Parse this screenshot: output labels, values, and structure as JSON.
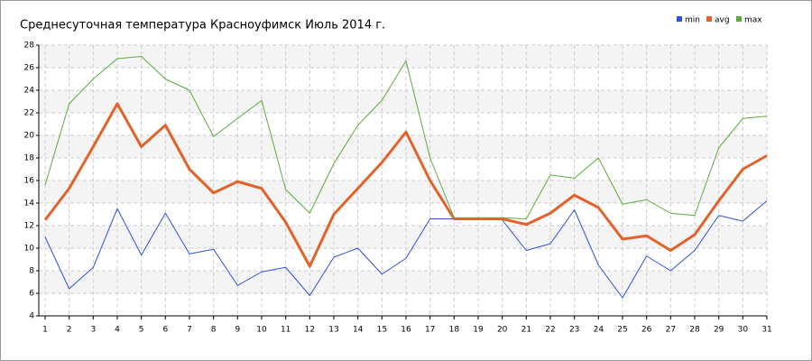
{
  "chart_data": {
    "type": "line",
    "title": "Среднесуточная температура Красноуфимск  Июль 2014 г.",
    "x": [
      1,
      2,
      3,
      4,
      5,
      6,
      7,
      8,
      9,
      10,
      11,
      12,
      13,
      14,
      15,
      16,
      17,
      18,
      19,
      20,
      21,
      22,
      23,
      24,
      25,
      26,
      27,
      28,
      29,
      30,
      31
    ],
    "series": [
      {
        "name": "min",
        "color": "#3050d8",
        "width": 1,
        "values": [
          11,
          6.4,
          8.3,
          13.5,
          9.4,
          13.1,
          9.5,
          9.9,
          6.7,
          7.9,
          8.3,
          5.8,
          9.2,
          10,
          7.7,
          9.1,
          12.6,
          12.6,
          12.6,
          12.5,
          9.8,
          10.4,
          13.4,
          8.5,
          5.6,
          9.3,
          8,
          9.8,
          12.9,
          12.4,
          14.2
        ]
      },
      {
        "name": "avg",
        "color": "#e2622a",
        "width": 3,
        "values": [
          12.5,
          15.3,
          19,
          22.8,
          19,
          20.9,
          17,
          14.9,
          15.9,
          15.3,
          12.3,
          8.4,
          13,
          15.3,
          17.6,
          20.3,
          16,
          12.6,
          12.6,
          12.6,
          12.1,
          13.1,
          14.7,
          13.6,
          10.8,
          11.1,
          9.8,
          11.2,
          14.2,
          17,
          18.2
        ]
      },
      {
        "name": "max",
        "color": "#5aac3c",
        "width": 1,
        "values": [
          15.6,
          22.8,
          25,
          26.8,
          27,
          25,
          24,
          19.9,
          21.5,
          23.1,
          15.2,
          13.1,
          17.5,
          20.9,
          23.1,
          26.6,
          18,
          12.7,
          12.7,
          12.7,
          12.6,
          16.5,
          16.2,
          18,
          13.9,
          14.3,
          13.1,
          12.9,
          18.9,
          21.5,
          21.7
        ]
      }
    ],
    "xlim": [
      1,
      31
    ],
    "xticks": [
      1,
      2,
      3,
      4,
      5,
      6,
      7,
      8,
      9,
      10,
      11,
      12,
      13,
      14,
      15,
      16,
      17,
      18,
      19,
      20,
      21,
      22,
      23,
      24,
      25,
      26,
      27,
      28,
      29,
      30,
      31
    ],
    "ylim": [
      4,
      28
    ],
    "yticks": [
      4,
      6,
      8,
      10,
      12,
      14,
      16,
      18,
      20,
      22,
      24,
      26,
      28
    ],
    "grid": true,
    "legend": "top-right"
  }
}
